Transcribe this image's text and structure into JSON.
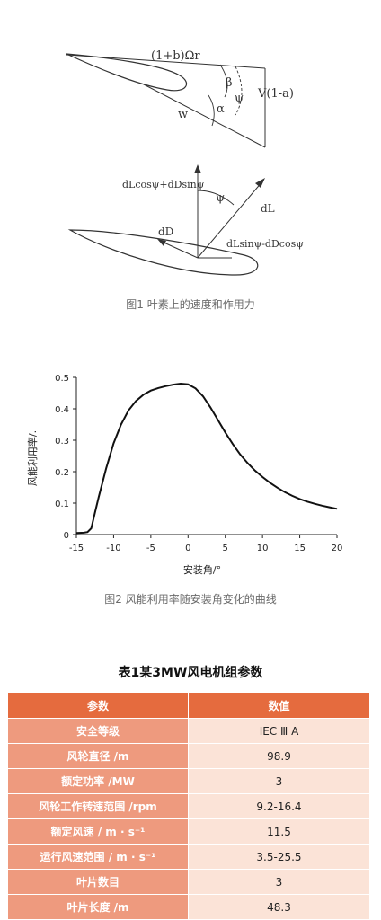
{
  "figure1": {
    "labels": {
      "tangential": "(1+b)Ωr",
      "axial": "V(1-a)",
      "relative": "w",
      "beta": "β",
      "psi": "ψ",
      "alpha": "α",
      "force_axial": "dLcosψ+dDsinψ",
      "lift": "dL",
      "drag": "dD",
      "psi2": "ψ",
      "force_tangential": "dLsinψ-dDcosψ"
    },
    "caption": "图1 叶素上的速度和作用力"
  },
  "figure2": {
    "caption": "图2 风能利用率随安装角变化的曲线",
    "chart_data": {
      "type": "line",
      "xlabel": "安装角/°",
      "ylabel": "风能利用率/.",
      "xlim": [
        -15,
        20
      ],
      "ylim": [
        0,
        0.5
      ],
      "xticks": [
        "-15",
        "-10",
        "-5",
        "0",
        "5",
        "10",
        "15",
        "20"
      ],
      "yticks": [
        "0",
        "0.1",
        "0.2",
        "0.3",
        "0.4",
        "0.5"
      ],
      "grid": false,
      "series": [
        {
          "x": [
            -15,
            -14,
            -13.5,
            -13,
            -12.5,
            -12,
            -11,
            -10,
            -9,
            -8,
            -7,
            -6,
            -5,
            -4,
            -3,
            -2,
            -1,
            0,
            1,
            2,
            3,
            4,
            5,
            6,
            7,
            8,
            9,
            10,
            11,
            12,
            13,
            14,
            15,
            16,
            17,
            18,
            19,
            20
          ],
          "y": [
            0.005,
            0.006,
            0.008,
            0.02,
            0.07,
            0.12,
            0.21,
            0.29,
            0.35,
            0.395,
            0.425,
            0.445,
            0.458,
            0.466,
            0.472,
            0.477,
            0.48,
            0.478,
            0.465,
            0.44,
            0.405,
            0.365,
            0.325,
            0.288,
            0.255,
            0.227,
            0.203,
            0.183,
            0.165,
            0.149,
            0.135,
            0.123,
            0.113,
            0.105,
            0.098,
            0.092,
            0.087,
            0.082
          ]
        }
      ]
    }
  },
  "table": {
    "title": "表1某3MW风电机组参数",
    "headers": [
      "参数",
      "数值"
    ],
    "rows": [
      {
        "param": "安全等级",
        "value": "IEC Ⅲ A"
      },
      {
        "param": "风轮直径 /m",
        "value": "98.9"
      },
      {
        "param": "额定功率 /MW",
        "value": "3"
      },
      {
        "param": "风轮工作转速范围 /rpm",
        "value": "9.2-16.4"
      },
      {
        "param": "额定风速 / m · s⁻¹",
        "value": "11.5"
      },
      {
        "param": "运行风速范围 / m · s⁻¹",
        "value": "3.5-25.5"
      },
      {
        "param": "叶片数目",
        "value": "3"
      },
      {
        "param": "叶片长度 /m",
        "value": "48.3"
      }
    ]
  }
}
